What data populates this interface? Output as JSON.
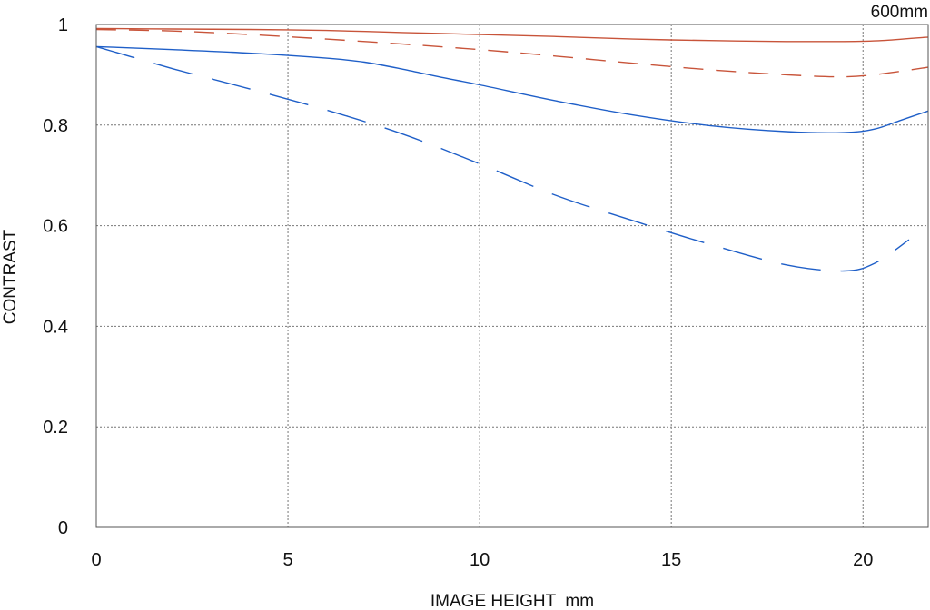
{
  "chart_data": {
    "type": "line",
    "title": "",
    "corner_label": "600mm",
    "xlabel": "IMAGE HEIGHT  mm",
    "ylabel": "CONTRAST",
    "xlim": [
      0,
      21.7
    ],
    "ylim": [
      0,
      1
    ],
    "x_ticks": [
      0,
      5,
      10,
      15,
      20
    ],
    "x_tick_labels": [
      "0",
      "5",
      "10",
      "15",
      "20"
    ],
    "y_ticks": [
      0,
      0.2,
      0.4,
      0.6,
      0.8,
      1
    ],
    "y_tick_labels": [
      "0",
      "0.2",
      "0.4",
      "0.6",
      "0.8",
      "1"
    ],
    "grid": true,
    "legend": "none",
    "series": [
      {
        "color": "#c8543a",
        "dash": "solid",
        "x": [
          0,
          2,
          4,
          6,
          8,
          10,
          12,
          14,
          16,
          18,
          19.5,
          20.5,
          21.7
        ],
        "y": [
          0.992,
          0.991,
          0.99,
          0.988,
          0.984,
          0.98,
          0.976,
          0.971,
          0.968,
          0.966,
          0.966,
          0.968,
          0.975
        ]
      },
      {
        "color": "#c8543a",
        "dash": "dashed",
        "x": [
          0,
          2,
          4,
          6,
          8,
          10,
          12,
          14,
          16,
          18,
          19.5,
          20.5,
          21.7
        ],
        "y": [
          0.99,
          0.987,
          0.98,
          0.971,
          0.961,
          0.95,
          0.937,
          0.923,
          0.91,
          0.9,
          0.896,
          0.902,
          0.915
        ]
      },
      {
        "color": "#1f5fc8",
        "dash": "solid",
        "x": [
          0,
          2,
          4,
          6,
          7,
          8,
          9,
          10,
          12,
          14,
          16,
          18,
          19.5,
          20.3,
          21,
          21.7
        ],
        "y": [
          0.956,
          0.95,
          0.943,
          0.933,
          0.925,
          0.911,
          0.895,
          0.88,
          0.848,
          0.82,
          0.799,
          0.787,
          0.785,
          0.792,
          0.81,
          0.828
        ]
      },
      {
        "color": "#1f5fc8",
        "dash": "longdash",
        "x": [
          0,
          2,
          4,
          6,
          8,
          10,
          12,
          14,
          16,
          18,
          19.5,
          20.3,
          21.2
        ],
        "y": [
          0.956,
          0.912,
          0.872,
          0.83,
          0.782,
          0.723,
          0.66,
          0.61,
          0.563,
          0.522,
          0.51,
          0.525,
          0.572
        ]
      }
    ]
  }
}
